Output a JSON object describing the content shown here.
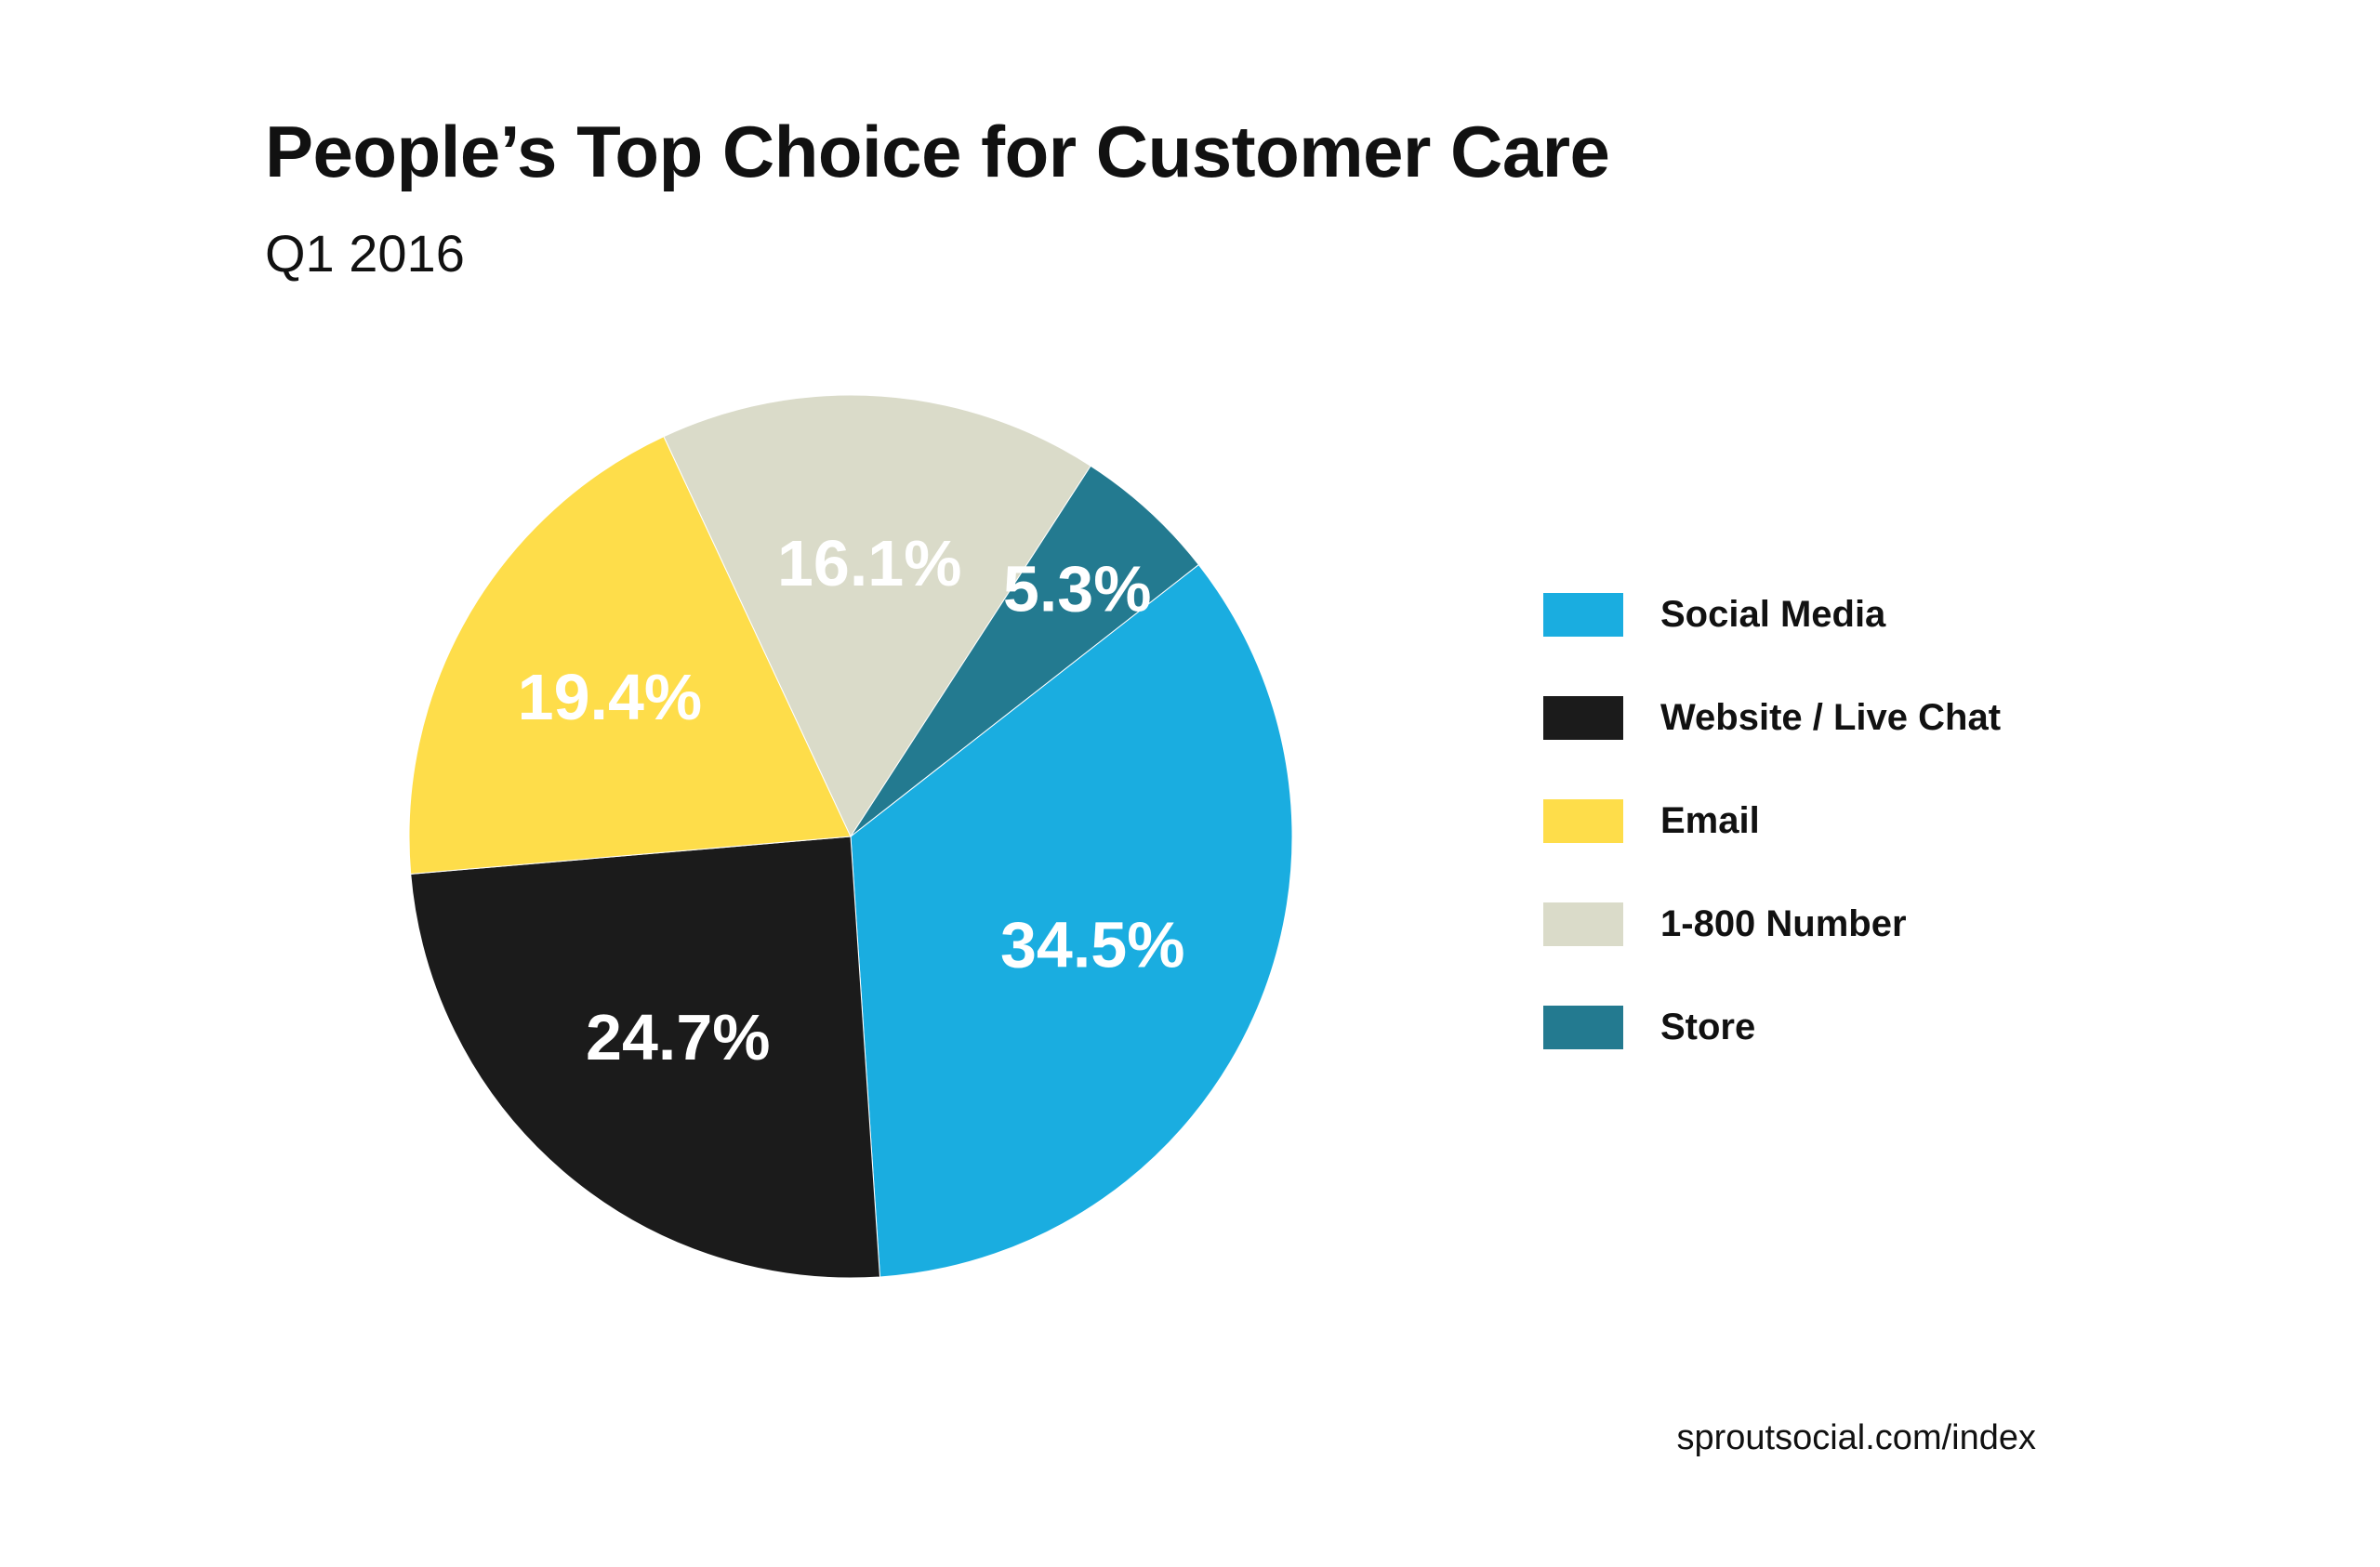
{
  "chart_data": {
    "type": "pie",
    "title": "People’s Top Choice for Customer Care",
    "subtitle": "Q1 2016",
    "legend_position": "right",
    "slices": [
      {
        "name": "Social Media",
        "value": 34.5,
        "label": "34.5%",
        "color": "#1aade0",
        "label_color": "#ffffff"
      },
      {
        "name": "Website / Live Chat",
        "value": 24.7,
        "label": "24.7%",
        "color": "#1b1b1b",
        "label_color": "#ffffff"
      },
      {
        "name": "Email",
        "value": 19.4,
        "label": "19.4%",
        "color": "#fedd4a",
        "label_color": "#ffffff"
      },
      {
        "name": "1-800 Number",
        "value": 16.1,
        "label": "16.1%",
        "color": "#dadbc9",
        "label_color": "#ffffff"
      },
      {
        "name": "Store",
        "value": 5.3,
        "label": "5.3%",
        "color": "#237a90",
        "label_color": "#ffffff"
      }
    ],
    "source": "sproutsocial.com/index"
  }
}
